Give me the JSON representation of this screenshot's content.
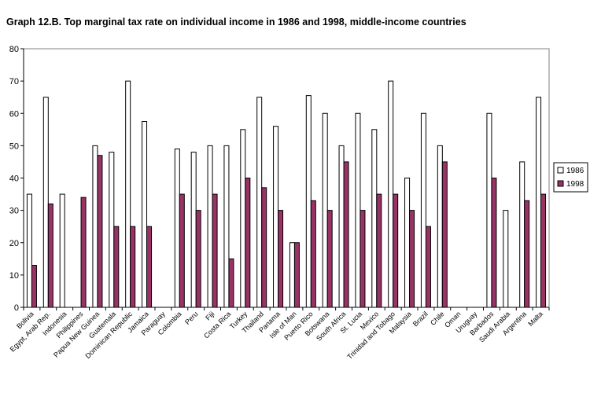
{
  "chart_data": {
    "type": "bar",
    "title": "Graph 12.B.  Top marginal tax rate on individual income in 1986 and 1998, middle-income countries",
    "xlabel": "",
    "ylabel": "",
    "ylim": [
      0,
      80
    ],
    "yticks": [
      0,
      10,
      20,
      30,
      40,
      50,
      60,
      70,
      80
    ],
    "grid": false,
    "legend_position": "right",
    "categories": [
      "Bolivia",
      "Egypt, Arab Rep.",
      "Indonesia",
      "Philippines",
      "Papua New Guinea",
      "Guatemala",
      "Dominican Republic",
      "Jamaica",
      "Paraguay",
      "Colombia",
      "Peru",
      "Fiji",
      "Costa Rica",
      "Turkey",
      "Thailand",
      "Panama",
      "Isle of Man",
      "Puerto Rico",
      "Botswana",
      "South Africa",
      "St. Lucia",
      "Mexico",
      "Trinidad and Tobago",
      "Malaysia",
      "Brazil",
      "Chile",
      "Oman",
      "Uruguay",
      "Barbados",
      "Saudi Arabia",
      "Argentina",
      "Malta"
    ],
    "series": [
      {
        "name": "1986",
        "color": "#ffffff",
        "values": [
          35,
          65,
          35,
          null,
          50,
          48,
          70,
          57.5,
          null,
          49,
          48,
          50,
          50,
          55,
          65,
          56,
          20,
          65.5,
          60,
          50,
          60,
          55,
          70,
          40,
          60,
          50,
          null,
          null,
          60,
          30,
          45,
          65
        ]
      },
      {
        "name": "1998",
        "color": "#993366",
        "values": [
          13,
          32,
          null,
          34,
          47,
          25,
          25,
          25,
          null,
          35,
          30,
          35,
          15,
          40,
          37,
          30,
          20,
          33,
          30,
          45,
          30,
          35,
          35,
          30,
          25,
          45,
          null,
          null,
          40,
          null,
          33,
          35
        ]
      }
    ]
  }
}
